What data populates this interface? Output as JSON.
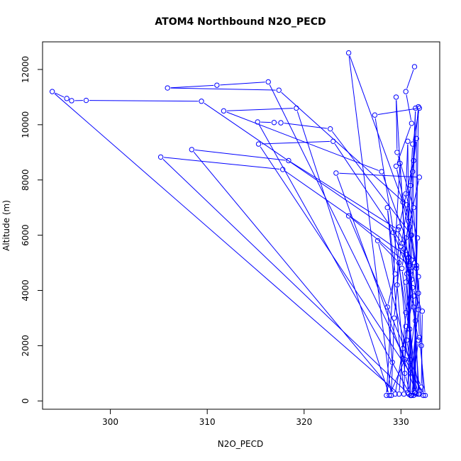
{
  "chart_data": {
    "type": "line",
    "title": "ATOM4 Northbound N2O_PECD",
    "xlabel": "N2O_PECD",
    "ylabel": "Altitude (m)",
    "xlim": [
      293,
      334
    ],
    "ylim": [
      -300,
      13000
    ],
    "x_ticks": [
      300,
      310,
      320,
      330
    ],
    "y_ticks": [
      0,
      2000,
      4000,
      6000,
      8000,
      10000,
      12000
    ],
    "series_color": "#0000ff",
    "marker": "open-circle",
    "grid": false,
    "legend": "none",
    "points": [
      [
        331.4,
        12100
      ],
      [
        330.5,
        11200
      ],
      [
        331.1,
        10050
      ],
      [
        329.5,
        8500
      ],
      [
        330.9,
        6300
      ],
      [
        331.0,
        4700
      ],
      [
        330.6,
        2200
      ],
      [
        331.5,
        300
      ],
      [
        331.6,
        9500
      ],
      [
        331.0,
        7800
      ],
      [
        330.0,
        5600
      ],
      [
        329.3,
        3000
      ],
      [
        329.0,
        200
      ],
      [
        324.6,
        12600
      ],
      [
        330.2,
        7200
      ],
      [
        331.8,
        4500
      ],
      [
        332.1,
        2000
      ],
      [
        332.3,
        200
      ],
      [
        316.3,
        11550
      ],
      [
        311.0,
        11430
      ],
      [
        305.9,
        11330
      ],
      [
        317.4,
        11250
      ],
      [
        330.6,
        7100
      ],
      [
        331.4,
        5000
      ],
      [
        330.5,
        3200
      ],
      [
        329.8,
        250
      ],
      [
        294.0,
        11200
      ],
      [
        295.5,
        10950
      ],
      [
        296.0,
        10870
      ],
      [
        297.5,
        10880
      ],
      [
        309.4,
        10850
      ],
      [
        329.2,
        6100
      ],
      [
        331.1,
        4400
      ],
      [
        330.4,
        1500
      ],
      [
        328.8,
        200
      ],
      [
        319.2,
        10600
      ],
      [
        311.7,
        10500
      ],
      [
        328.0,
        8300
      ],
      [
        330.5,
        5900
      ],
      [
        331.3,
        3400
      ],
      [
        331.9,
        250
      ],
      [
        327.3,
        10350
      ],
      [
        331.9,
        10600
      ],
      [
        331.2,
        9300
      ],
      [
        330.8,
        6500
      ],
      [
        330.1,
        4800
      ],
      [
        330.9,
        2600
      ],
      [
        331.4,
        300
      ],
      [
        331.8,
        10650
      ],
      [
        331.3,
        8700
      ],
      [
        329.8,
        6300
      ],
      [
        329.6,
        4200
      ],
      [
        330.4,
        1000
      ],
      [
        331.0,
        200
      ],
      [
        315.2,
        10100
      ],
      [
        316.9,
        10080
      ],
      [
        317.6,
        10070
      ],
      [
        322.7,
        9850
      ],
      [
        331.1,
        6000
      ],
      [
        331.6,
        4900
      ],
      [
        331.9,
        2300
      ],
      [
        332.5,
        200
      ],
      [
        315.3,
        9300
      ],
      [
        323.0,
        9400
      ],
      [
        330.1,
        5700
      ],
      [
        331.3,
        3800
      ],
      [
        330.2,
        1900
      ],
      [
        329.4,
        250
      ],
      [
        308.4,
        9100
      ],
      [
        318.4,
        8700
      ],
      [
        329.7,
        6200
      ],
      [
        331.1,
        5100
      ],
      [
        331.8,
        3300
      ],
      [
        330.8,
        250
      ],
      [
        305.2,
        8830
      ],
      [
        317.8,
        8380
      ],
      [
        330.8,
        5200
      ],
      [
        330.5,
        4300
      ],
      [
        331.6,
        250
      ],
      [
        323.3,
        8250
      ],
      [
        331.9,
        8100
      ],
      [
        330.3,
        5500
      ],
      [
        331.2,
        4100
      ],
      [
        332.2,
        3250
      ],
      [
        332.1,
        500
      ],
      [
        324.6,
        6700
      ],
      [
        330.9,
        4900
      ],
      [
        331.5,
        2900
      ],
      [
        331.8,
        250
      ],
      [
        327.6,
        5800
      ],
      [
        329.8,
        5000
      ],
      [
        330.5,
        2700
      ],
      [
        330.3,
        250
      ],
      [
        328.6,
        7000
      ],
      [
        329.4,
        4600
      ],
      [
        328.6,
        3400
      ],
      [
        329.1,
        1400
      ],
      [
        328.5,
        200
      ],
      [
        329.9,
        8600
      ],
      [
        330.5,
        5300
      ],
      [
        330.8,
        4650
      ],
      [
        331.0,
        200
      ],
      [
        330.7,
        9400
      ],
      [
        330.5,
        7500
      ],
      [
        331.7,
        5900
      ],
      [
        331.6,
        4800
      ],
      [
        331.3,
        200
      ],
      [
        329.5,
        11000
      ],
      [
        329.6,
        9000
      ],
      [
        331.3,
        7000
      ],
      [
        331.8,
        3900
      ],
      [
        330.9,
        1500
      ],
      [
        330.7,
        300
      ],
      [
        331.5,
        10600
      ],
      [
        331.2,
        8300
      ],
      [
        331.0,
        6000
      ],
      [
        330.6,
        4600
      ],
      [
        331.8,
        2200
      ],
      [
        331.1,
        200
      ]
    ]
  }
}
